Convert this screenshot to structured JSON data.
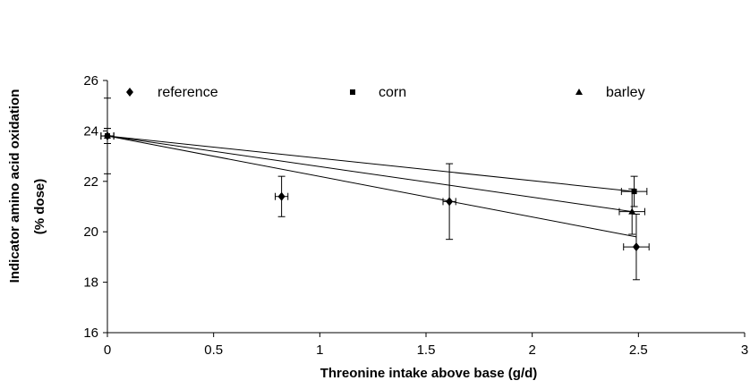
{
  "chart_data": {
    "type": "scatter",
    "title": "",
    "xlabel": "Threonine intake above base (g/d)",
    "ylabel_line1": "Indicator amino acid oxidation",
    "ylabel_line2": "(% dose)",
    "xlim": [
      0,
      3
    ],
    "ylim": [
      16,
      26
    ],
    "x_ticks": [
      0,
      0.5,
      1,
      1.5,
      2,
      2.5,
      3
    ],
    "x_tick_labels": [
      "0",
      "0.5",
      "1",
      "1.5",
      "2",
      "2.5",
      "3"
    ],
    "y_ticks": [
      16,
      18,
      20,
      22,
      24,
      26
    ],
    "y_tick_labels": [
      "16",
      "18",
      "20",
      "22",
      "24",
      "26"
    ],
    "grid": false,
    "legend_position": "top",
    "series": [
      {
        "name": "reference",
        "marker": "diamond",
        "points": [
          {
            "x": 0.0,
            "y": 23.8,
            "xerr": 0.03,
            "yerr": 1.5
          },
          {
            "x": 0.82,
            "y": 21.4,
            "xerr": 0.03,
            "yerr": 0.8
          },
          {
            "x": 1.61,
            "y": 21.2,
            "xerr": 0.03,
            "yerr": 1.5
          },
          {
            "x": 2.49,
            "y": 19.4,
            "xerr": 0.06,
            "yerr": 1.3
          }
        ],
        "trend": {
          "x": [
            0,
            2.49
          ],
          "y": [
            23.8,
            19.8
          ]
        }
      },
      {
        "name": "corn",
        "marker": "square",
        "points": [
          {
            "x": 0.0,
            "y": 23.8,
            "xerr": 0.03,
            "yerr": 0.3
          },
          {
            "x": 2.48,
            "y": 21.6,
            "xerr": 0.06,
            "yerr": 0.6
          }
        ],
        "trend": {
          "x": [
            0,
            2.48
          ],
          "y": [
            23.8,
            21.6
          ]
        }
      },
      {
        "name": "barley",
        "marker": "triangle",
        "points": [
          {
            "x": 0.0,
            "y": 23.8,
            "xerr": 0.03,
            "yerr": 0.3
          },
          {
            "x": 2.47,
            "y": 20.8,
            "xerr": 0.06,
            "yerr": 0.9
          }
        ],
        "trend": {
          "x": [
            0,
            2.47
          ],
          "y": [
            23.8,
            20.8
          ]
        }
      }
    ],
    "legend_labels": [
      "reference",
      "corn",
      "barley"
    ]
  }
}
